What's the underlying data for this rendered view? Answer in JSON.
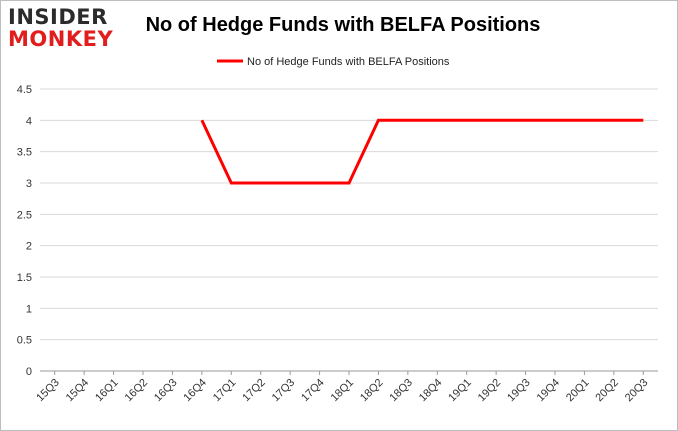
{
  "logo": {
    "line1": "INSIDER",
    "line2": "MONKEY"
  },
  "chart_data": {
    "type": "line",
    "title": "No of Hedge Funds with BELFA Positions",
    "xlabel": "",
    "ylabel": "",
    "categories": [
      "15Q3",
      "15Q4",
      "16Q1",
      "16Q2",
      "16Q3",
      "16Q4",
      "17Q1",
      "17Q2",
      "17Q3",
      "17Q4",
      "18Q1",
      "18Q2",
      "18Q3",
      "18Q4",
      "19Q1",
      "19Q2",
      "19Q3",
      "19Q4",
      "20Q1",
      "20Q2",
      "20Q3"
    ],
    "series": [
      {
        "name": "No of Hedge Funds with BELFA Positions",
        "color": "#ff0000",
        "values": [
          null,
          null,
          null,
          null,
          null,
          4,
          3,
          3,
          3,
          3,
          3,
          4,
          4,
          4,
          4,
          4,
          4,
          4,
          4,
          4,
          4
        ]
      }
    ],
    "ylim": [
      0,
      4.5
    ],
    "yticks": [
      "0",
      "0.5",
      "1",
      "1.5",
      "2",
      "2.5",
      "3",
      "3.5",
      "4",
      "4.5"
    ],
    "grid": true,
    "legend": "top-center"
  }
}
